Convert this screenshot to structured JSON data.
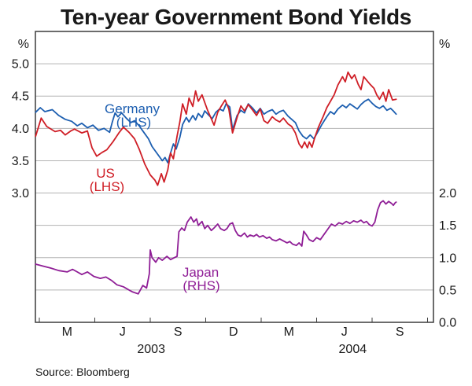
{
  "chart_data": {
    "type": "line",
    "title": "Ten-year Government Bond Yields",
    "source": "Source: Bloomberg",
    "grid": true,
    "left_axis": {
      "unit": "%",
      "ticks": [
        "5.0",
        "4.5",
        "4.0",
        "3.5",
        "3.0"
      ],
      "range": [
        1.0,
        5.5
      ]
    },
    "right_axis": {
      "unit": "%",
      "ticks": [
        "2.0",
        "1.5",
        "1.0",
        "0.5",
        "0.0"
      ],
      "range": [
        0.0,
        4.5
      ]
    },
    "gridlines_left_values": [
      5.0,
      4.5,
      4.0,
      3.5,
      3.0,
      2.5,
      2.0,
      1.5
    ],
    "x_axis": {
      "description": "months since Feb 2003; letters mark Mar/Jun/Sep/Dec",
      "tick_months": [
        0,
        3,
        6,
        9,
        12,
        15,
        18,
        21
      ],
      "month_labels": [
        {
          "label": "M",
          "m": 1.5
        },
        {
          "label": "J",
          "m": 4.5
        },
        {
          "label": "S",
          "m": 7.5
        },
        {
          "label": "D",
          "m": 10.5
        },
        {
          "label": "M",
          "m": 13.5
        },
        {
          "label": "J",
          "m": 16.5
        },
        {
          "label": "S",
          "m": 19.5
        }
      ],
      "year_labels": [
        {
          "label": "2003",
          "m": 6.05
        },
        {
          "label": "2004",
          "m": 16.95
        }
      ]
    },
    "series": [
      {
        "name": "Germany",
        "label": "Germany",
        "sublabel": "(LHS)",
        "axis": "left",
        "color": "#1c5eb0",
        "points": [
          [
            -0.2,
            4.25
          ],
          [
            0.05,
            4.32
          ],
          [
            0.3,
            4.26
          ],
          [
            0.7,
            4.29
          ],
          [
            1.05,
            4.2
          ],
          [
            1.4,
            4.14
          ],
          [
            1.75,
            4.11
          ],
          [
            2.05,
            4.04
          ],
          [
            2.3,
            4.08
          ],
          [
            2.6,
            4.01
          ],
          [
            2.9,
            4.05
          ],
          [
            3.2,
            3.97
          ],
          [
            3.5,
            4.0
          ],
          [
            3.8,
            3.94
          ],
          [
            3.95,
            4.1
          ],
          [
            4.1,
            4.24
          ],
          [
            4.25,
            4.18
          ],
          [
            4.45,
            4.24
          ],
          [
            4.7,
            4.16
          ],
          [
            4.95,
            4.09
          ],
          [
            5.15,
            4.12
          ],
          [
            5.4,
            4.04
          ],
          [
            5.65,
            3.94
          ],
          [
            5.9,
            3.84
          ],
          [
            6.1,
            3.72
          ],
          [
            6.3,
            3.64
          ],
          [
            6.5,
            3.56
          ],
          [
            6.65,
            3.5
          ],
          [
            6.8,
            3.55
          ],
          [
            6.95,
            3.47
          ],
          [
            7.1,
            3.62
          ],
          [
            7.25,
            3.76
          ],
          [
            7.4,
            3.68
          ],
          [
            7.6,
            3.86
          ],
          [
            7.75,
            4.06
          ],
          [
            7.95,
            4.17
          ],
          [
            8.1,
            4.1
          ],
          [
            8.3,
            4.2
          ],
          [
            8.45,
            4.13
          ],
          [
            8.6,
            4.23
          ],
          [
            8.8,
            4.17
          ],
          [
            8.95,
            4.27
          ],
          [
            9.15,
            4.21
          ],
          [
            9.35,
            4.15
          ],
          [
            9.55,
            4.25
          ],
          [
            9.75,
            4.3
          ],
          [
            9.95,
            4.27
          ],
          [
            10.1,
            4.38
          ],
          [
            10.3,
            4.33
          ],
          [
            10.45,
            3.98
          ],
          [
            10.7,
            4.2
          ],
          [
            10.9,
            4.28
          ],
          [
            11.1,
            4.24
          ],
          [
            11.3,
            4.38
          ],
          [
            11.55,
            4.31
          ],
          [
            11.75,
            4.24
          ],
          [
            11.95,
            4.31
          ],
          [
            12.15,
            4.22
          ],
          [
            12.35,
            4.26
          ],
          [
            12.6,
            4.29
          ],
          [
            12.8,
            4.22
          ],
          [
            13.0,
            4.26
          ],
          [
            13.2,
            4.28
          ],
          [
            13.45,
            4.19
          ],
          [
            13.65,
            4.14
          ],
          [
            13.85,
            4.09
          ],
          [
            14.05,
            3.96
          ],
          [
            14.25,
            3.88
          ],
          [
            14.45,
            3.84
          ],
          [
            14.65,
            3.9
          ],
          [
            14.85,
            3.84
          ],
          [
            15.05,
            3.94
          ],
          [
            15.3,
            4.07
          ],
          [
            15.55,
            4.18
          ],
          [
            15.75,
            4.26
          ],
          [
            15.95,
            4.22
          ],
          [
            16.15,
            4.3
          ],
          [
            16.4,
            4.36
          ],
          [
            16.6,
            4.32
          ],
          [
            16.8,
            4.38
          ],
          [
            17.0,
            4.34
          ],
          [
            17.2,
            4.3
          ],
          [
            17.4,
            4.37
          ],
          [
            17.6,
            4.42
          ],
          [
            17.8,
            4.45
          ],
          [
            18.0,
            4.39
          ],
          [
            18.2,
            4.34
          ],
          [
            18.4,
            4.31
          ],
          [
            18.6,
            4.35
          ],
          [
            18.8,
            4.28
          ],
          [
            19.0,
            4.31
          ],
          [
            19.15,
            4.27
          ],
          [
            19.3,
            4.22
          ]
        ]
      },
      {
        "name": "US",
        "label": "US",
        "sublabel": "(LHS)",
        "axis": "left",
        "color": "#cf1e26",
        "points": [
          [
            -0.2,
            3.88
          ],
          [
            0.1,
            4.16
          ],
          [
            0.4,
            4.03
          ],
          [
            0.85,
            3.95
          ],
          [
            1.15,
            3.97
          ],
          [
            1.4,
            3.9
          ],
          [
            1.7,
            3.96
          ],
          [
            1.9,
            3.99
          ],
          [
            2.3,
            3.93
          ],
          [
            2.6,
            3.96
          ],
          [
            2.85,
            3.7
          ],
          [
            3.1,
            3.57
          ],
          [
            3.4,
            3.63
          ],
          [
            3.65,
            3.67
          ],
          [
            4.0,
            3.8
          ],
          [
            4.3,
            3.93
          ],
          [
            4.55,
            4.02
          ],
          [
            4.85,
            3.94
          ],
          [
            5.15,
            3.84
          ],
          [
            5.4,
            3.68
          ],
          [
            5.7,
            3.45
          ],
          [
            6.0,
            3.28
          ],
          [
            6.25,
            3.2
          ],
          [
            6.4,
            3.12
          ],
          [
            6.6,
            3.3
          ],
          [
            6.75,
            3.17
          ],
          [
            6.95,
            3.36
          ],
          [
            7.1,
            3.62
          ],
          [
            7.25,
            3.53
          ],
          [
            7.45,
            3.88
          ],
          [
            7.6,
            4.1
          ],
          [
            7.75,
            4.38
          ],
          [
            7.95,
            4.22
          ],
          [
            8.1,
            4.47
          ],
          [
            8.3,
            4.34
          ],
          [
            8.45,
            4.58
          ],
          [
            8.6,
            4.42
          ],
          [
            8.8,
            4.52
          ],
          [
            8.95,
            4.4
          ],
          [
            9.1,
            4.28
          ],
          [
            9.3,
            4.15
          ],
          [
            9.45,
            4.05
          ],
          [
            9.65,
            4.25
          ],
          [
            9.85,
            4.35
          ],
          [
            10.05,
            4.44
          ],
          [
            10.25,
            4.3
          ],
          [
            10.45,
            3.93
          ],
          [
            10.7,
            4.17
          ],
          [
            10.9,
            4.35
          ],
          [
            11.1,
            4.27
          ],
          [
            11.3,
            4.37
          ],
          [
            11.55,
            4.28
          ],
          [
            11.75,
            4.2
          ],
          [
            11.95,
            4.3
          ],
          [
            12.15,
            4.12
          ],
          [
            12.35,
            4.08
          ],
          [
            12.6,
            4.18
          ],
          [
            12.8,
            4.13
          ],
          [
            13.0,
            4.1
          ],
          [
            13.2,
            4.16
          ],
          [
            13.45,
            4.07
          ],
          [
            13.65,
            4.03
          ],
          [
            13.85,
            3.93
          ],
          [
            14.05,
            3.76
          ],
          [
            14.2,
            3.7
          ],
          [
            14.35,
            3.79
          ],
          [
            14.5,
            3.7
          ],
          [
            14.6,
            3.79
          ],
          [
            14.75,
            3.71
          ],
          [
            14.9,
            3.86
          ],
          [
            15.1,
            4.02
          ],
          [
            15.35,
            4.18
          ],
          [
            15.55,
            4.32
          ],
          [
            15.75,
            4.42
          ],
          [
            15.95,
            4.52
          ],
          [
            16.15,
            4.67
          ],
          [
            16.4,
            4.8
          ],
          [
            16.55,
            4.72
          ],
          [
            16.7,
            4.87
          ],
          [
            16.9,
            4.77
          ],
          [
            17.05,
            4.83
          ],
          [
            17.25,
            4.68
          ],
          [
            17.4,
            4.6
          ],
          [
            17.55,
            4.8
          ],
          [
            17.75,
            4.73
          ],
          [
            17.9,
            4.68
          ],
          [
            18.1,
            4.62
          ],
          [
            18.25,
            4.52
          ],
          [
            18.4,
            4.45
          ],
          [
            18.6,
            4.56
          ],
          [
            18.75,
            4.42
          ],
          [
            18.9,
            4.6
          ],
          [
            19.1,
            4.44
          ],
          [
            19.3,
            4.45
          ]
        ]
      },
      {
        "name": "Japan",
        "label": "Japan",
        "sublabel": "(RHS)",
        "axis": "right",
        "color": "#8f1e96",
        "points": [
          [
            -0.2,
            0.9
          ],
          [
            0.2,
            0.87
          ],
          [
            0.6,
            0.84
          ],
          [
            1.05,
            0.8
          ],
          [
            1.5,
            0.78
          ],
          [
            1.8,
            0.82
          ],
          [
            2.05,
            0.78
          ],
          [
            2.3,
            0.74
          ],
          [
            2.6,
            0.78
          ],
          [
            2.95,
            0.71
          ],
          [
            3.3,
            0.68
          ],
          [
            3.6,
            0.7
          ],
          [
            3.9,
            0.65
          ],
          [
            4.2,
            0.58
          ],
          [
            4.55,
            0.55
          ],
          [
            4.85,
            0.5
          ],
          [
            5.05,
            0.47
          ],
          [
            5.35,
            0.44
          ],
          [
            5.6,
            0.57
          ],
          [
            5.8,
            0.53
          ],
          [
            5.95,
            0.75
          ],
          [
            6.0,
            1.12
          ],
          [
            6.1,
            1.0
          ],
          [
            6.3,
            0.93
          ],
          [
            6.45,
            1.0
          ],
          [
            6.65,
            0.96
          ],
          [
            6.9,
            1.02
          ],
          [
            7.1,
            0.97
          ],
          [
            7.3,
            1.0
          ],
          [
            7.45,
            1.02
          ],
          [
            7.55,
            1.4
          ],
          [
            7.7,
            1.46
          ],
          [
            7.85,
            1.42
          ],
          [
            8.0,
            1.55
          ],
          [
            8.2,
            1.63
          ],
          [
            8.35,
            1.55
          ],
          [
            8.5,
            1.6
          ],
          [
            8.6,
            1.5
          ],
          [
            8.8,
            1.56
          ],
          [
            8.95,
            1.45
          ],
          [
            9.1,
            1.5
          ],
          [
            9.3,
            1.42
          ],
          [
            9.45,
            1.46
          ],
          [
            9.65,
            1.52
          ],
          [
            9.8,
            1.45
          ],
          [
            10.0,
            1.42
          ],
          [
            10.15,
            1.45
          ],
          [
            10.3,
            1.52
          ],
          [
            10.45,
            1.54
          ],
          [
            10.6,
            1.42
          ],
          [
            10.75,
            1.35
          ],
          [
            10.9,
            1.33
          ],
          [
            11.1,
            1.38
          ],
          [
            11.25,
            1.32
          ],
          [
            11.4,
            1.35
          ],
          [
            11.6,
            1.33
          ],
          [
            11.75,
            1.36
          ],
          [
            11.9,
            1.32
          ],
          [
            12.1,
            1.34
          ],
          [
            12.3,
            1.3
          ],
          [
            12.45,
            1.32
          ],
          [
            12.6,
            1.28
          ],
          [
            12.8,
            1.26
          ],
          [
            13.0,
            1.29
          ],
          [
            13.2,
            1.26
          ],
          [
            13.4,
            1.23
          ],
          [
            13.55,
            1.25
          ],
          [
            13.7,
            1.21
          ],
          [
            13.9,
            1.19
          ],
          [
            14.05,
            1.23
          ],
          [
            14.2,
            1.18
          ],
          [
            14.3,
            1.41
          ],
          [
            14.45,
            1.35
          ],
          [
            14.6,
            1.28
          ],
          [
            14.8,
            1.25
          ],
          [
            15.0,
            1.31
          ],
          [
            15.2,
            1.28
          ],
          [
            15.4,
            1.36
          ],
          [
            15.6,
            1.44
          ],
          [
            15.8,
            1.52
          ],
          [
            16.0,
            1.49
          ],
          [
            16.2,
            1.54
          ],
          [
            16.4,
            1.52
          ],
          [
            16.6,
            1.56
          ],
          [
            16.8,
            1.53
          ],
          [
            17.0,
            1.57
          ],
          [
            17.2,
            1.55
          ],
          [
            17.4,
            1.58
          ],
          [
            17.55,
            1.54
          ],
          [
            17.7,
            1.56
          ],
          [
            17.85,
            1.51
          ],
          [
            18.0,
            1.49
          ],
          [
            18.15,
            1.55
          ],
          [
            18.3,
            1.74
          ],
          [
            18.45,
            1.85
          ],
          [
            18.6,
            1.88
          ],
          [
            18.75,
            1.83
          ],
          [
            18.9,
            1.87
          ],
          [
            19.05,
            1.84
          ],
          [
            19.15,
            1.81
          ],
          [
            19.25,
            1.85
          ],
          [
            19.3,
            1.86
          ]
        ]
      }
    ]
  }
}
